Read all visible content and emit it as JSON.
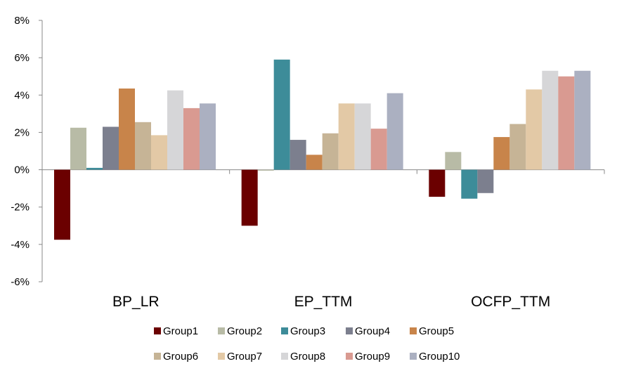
{
  "chart_data": {
    "type": "bar",
    "categories": [
      "BP_LR",
      "EP_TTM",
      "OCFP_TTM"
    ],
    "ylim": [
      -6,
      8
    ],
    "yticks": [
      -6,
      -4,
      -2,
      0,
      2,
      4,
      6,
      8
    ],
    "ytick_labels": [
      "-6%",
      "-4%",
      "-2%",
      "0%",
      "2%",
      "4%",
      "6%",
      "8%"
    ],
    "legend_position": "bottom",
    "grid": false,
    "series": [
      {
        "name": "Group1",
        "color": "#6B0000",
        "values": [
          -3.75,
          -3.0,
          -1.45
        ]
      },
      {
        "name": "Group2",
        "color": "#B8BBA6",
        "values": [
          2.25,
          -0.05,
          0.95
        ]
      },
      {
        "name": "Group3",
        "color": "#3D8C99",
        "values": [
          0.1,
          5.9,
          -1.55
        ]
      },
      {
        "name": "Group4",
        "color": "#7C7F8E",
        "values": [
          2.3,
          1.6,
          -1.25
        ]
      },
      {
        "name": "Group5",
        "color": "#C8844A",
        "values": [
          4.35,
          0.8,
          1.75
        ]
      },
      {
        "name": "Group6",
        "color": "#C6B496",
        "values": [
          2.55,
          1.95,
          2.45
        ]
      },
      {
        "name": "Group7",
        "color": "#E3C9A6",
        "values": [
          1.85,
          3.55,
          4.3
        ]
      },
      {
        "name": "Group8",
        "color": "#D6D6D8",
        "values": [
          4.25,
          3.55,
          5.3
        ]
      },
      {
        "name": "Group9",
        "color": "#D99A91",
        "values": [
          3.3,
          2.2,
          5.0
        ]
      },
      {
        "name": "Group10",
        "color": "#ABB0C1",
        "values": [
          3.55,
          4.1,
          5.3
        ]
      }
    ]
  }
}
